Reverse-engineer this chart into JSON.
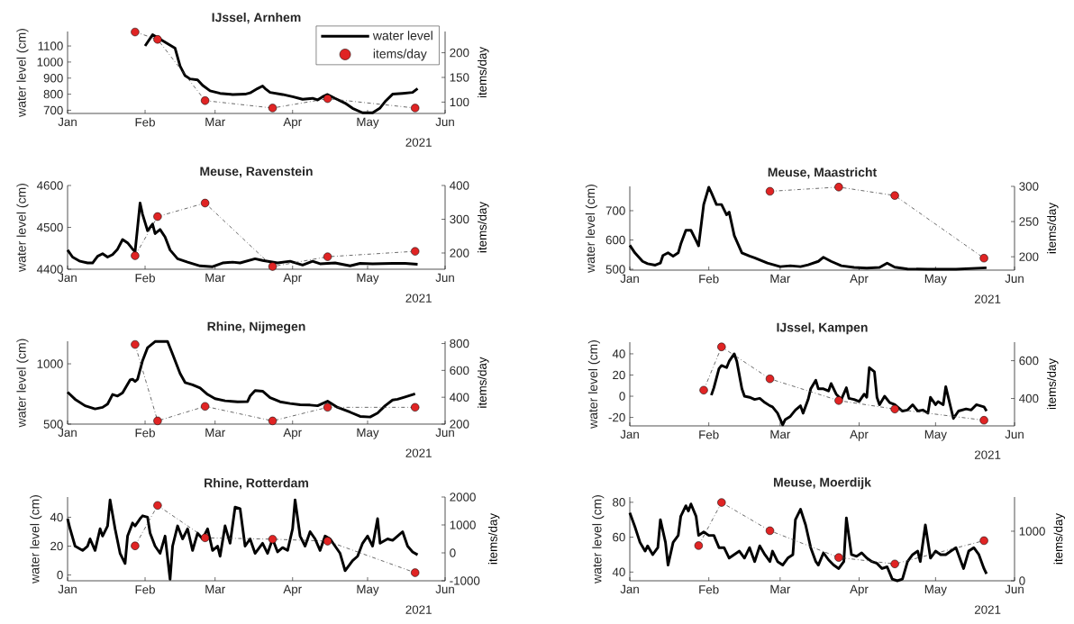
{
  "chart_data": [
    {
      "type": "line",
      "title": "IJssel, Arnhem",
      "ylabel": "water level (cm)",
      "y2label": "items/day",
      "legend": "top right",
      "annotations": [
        "2021"
      ],
      "xlim": [
        "2021-01-01",
        "2021-06-01"
      ],
      "xticks": [
        {
          "value": "2021-01-01",
          "label": "Jan"
        },
        {
          "value": "2021-02-01",
          "label": "Feb"
        },
        {
          "value": "2021-03-01",
          "label": "Mar"
        },
        {
          "value": "2021-04-01",
          "label": "Apr"
        },
        {
          "value": "2021-05-01",
          "label": "May"
        },
        {
          "value": "2021-06-01",
          "label": "Jun"
        }
      ],
      "ylim": [
        680,
        1190
      ],
      "yticks": [
        700,
        800,
        900,
        1000,
        1100
      ],
      "y2lim": [
        77,
        243
      ],
      "y2ticks": [
        100,
        150,
        200
      ],
      "series": [
        {
          "name": "water level",
          "color": "#000000",
          "marker": "none",
          "line_style": "solid",
          "x": [
            "2021-02-01",
            "2021-02-04",
            "2021-02-05",
            "2021-02-10",
            "2021-02-13",
            "2021-02-15",
            "2021-02-17",
            "2021-02-19",
            "2021-02-22",
            "2021-02-24",
            "2021-02-27",
            "2021-03-03",
            "2021-03-08",
            "2021-03-13",
            "2021-03-15",
            "2021-03-18",
            "2021-03-20",
            "2021-03-21",
            "2021-03-23",
            "2021-03-28",
            "2021-04-01",
            "2021-04-05",
            "2021-04-09",
            "2021-04-11",
            "2021-04-13",
            "2021-04-15",
            "2021-04-18",
            "2021-04-22",
            "2021-04-25",
            "2021-04-29",
            "2021-05-03",
            "2021-05-06",
            "2021-05-08",
            "2021-05-11",
            "2021-05-15",
            "2021-05-19",
            "2021-05-21"
          ],
          "values": [
            1100,
            1170,
            null,
            null,
            1086,
            975,
            915,
            895,
            889,
            855,
            821,
            805,
            798,
            800,
            808,
            835,
            851,
            835,
            811,
            798,
            784,
            768,
            774,
            764,
            784,
            798,
            774,
            744,
            712,
            684,
            684,
            714,
            754,
            800,
            805,
            811,
            835
          ]
        },
        {
          "name": "items/day",
          "color": "#e02424",
          "axis": "y2",
          "marker": "circle",
          "line_style": "dashdot",
          "x": [
            "2021-01-28",
            "2021-02-06",
            "2021-02-25",
            "2021-03-24",
            "2021-04-15",
            "2021-05-20"
          ],
          "values": [
            242,
            227,
            103,
            88,
            107,
            88
          ]
        }
      ]
    },
    {
      "type": "line",
      "title": "Meuse, Ravenstein",
      "ylabel": "water level (cm)",
      "y2label": "items/day",
      "annotations": [
        "2021"
      ],
      "xlim": [
        "2021-01-01",
        "2021-06-01"
      ],
      "xticks": [
        {
          "value": "2021-01-01",
          "label": "Jan"
        },
        {
          "value": "2021-02-01",
          "label": "Feb"
        },
        {
          "value": "2021-03-01",
          "label": "Mar"
        },
        {
          "value": "2021-04-01",
          "label": "Apr"
        },
        {
          "value": "2021-05-01",
          "label": "May"
        },
        {
          "value": "2021-06-01",
          "label": "Jun"
        }
      ],
      "ylim": [
        4400,
        4600
      ],
      "yticks": [
        4400,
        4500,
        4600
      ],
      "y2lim": [
        152,
        400
      ],
      "y2ticks": [
        200,
        300,
        400
      ],
      "series": [
        {
          "color": "#000000",
          "marker": "none",
          "line_style": "solid",
          "x": [
            "2021-01-01",
            "2021-01-03",
            "2021-01-06",
            "2021-01-09",
            "2021-01-11",
            "2021-01-13",
            "2021-01-15",
            "2021-01-17",
            "2021-01-19",
            "2021-01-21",
            "2021-01-23",
            "2021-01-25",
            "2021-01-27",
            "2021-01-28",
            "2021-01-30",
            "2021-01-31",
            "2021-02-02",
            "2021-02-04",
            "2021-02-05",
            "2021-02-07",
            "2021-02-09",
            "2021-02-11",
            "2021-02-14",
            "2021-02-18",
            "2021-02-23",
            "2021-02-28",
            "2021-03-04",
            "2021-03-08",
            "2021-03-11",
            "2021-03-17",
            "2021-03-20",
            "2021-03-26",
            "2021-03-31",
            "2021-04-05",
            "2021-04-09",
            "2021-04-12",
            "2021-04-18",
            "2021-04-24",
            "2021-04-28",
            "2021-05-03",
            "2021-05-11",
            "2021-05-16",
            "2021-05-21"
          ],
          "values": [
            4446,
            4429,
            4419,
            4415,
            4415,
            4431,
            4437,
            4429,
            4435,
            4448,
            4471,
            4463,
            4448,
            4442,
            4558,
            4531,
            4492,
            4508,
            4485,
            4495,
            4477,
            4446,
            4425,
            4417,
            4408,
            4406,
            4415,
            4417,
            4415,
            4425,
            4421,
            4415,
            4419,
            4410,
            4419,
            4413,
            4415,
            4408,
            4414,
            4413,
            4414,
            4414,
            4412
          ]
        },
        {
          "color": "#e02424",
          "axis": "y2",
          "marker": "circle",
          "line_style": "dashdot",
          "x": [
            "2021-01-28",
            "2021-02-06",
            "2021-02-25",
            "2021-03-24",
            "2021-04-15",
            "2021-05-20"
          ],
          "values": [
            192,
            308,
            348,
            160,
            189,
            205
          ]
        }
      ]
    },
    {
      "type": "line",
      "title": "Meuse, Maastricht",
      "ylabel": "water level (cm)",
      "y2label": "items/day",
      "annotations": [
        "2021"
      ],
      "xlim": [
        "2021-01-01",
        "2021-06-01"
      ],
      "xticks": [
        {
          "value": "2021-01-01",
          "label": "Jan"
        },
        {
          "value": "2021-02-01",
          "label": "Feb"
        },
        {
          "value": "2021-03-01",
          "label": "Mar"
        },
        {
          "value": "2021-04-01",
          "label": "Apr"
        },
        {
          "value": "2021-05-01",
          "label": "May"
        },
        {
          "value": "2021-06-01",
          "label": "Jun"
        }
      ],
      "ylim": [
        497,
        783
      ],
      "yticks": [
        500,
        600,
        700
      ],
      "y2lim": [
        181,
        300
      ],
      "y2ticks": [
        200,
        250,
        300
      ],
      "series": [
        {
          "color": "#000000",
          "marker": "none",
          "line_style": "solid",
          "x": [
            "2021-01-01",
            "2021-01-03",
            "2021-01-06",
            "2021-01-08",
            "2021-01-11",
            "2021-01-13",
            "2021-01-14",
            "2021-01-16",
            "2021-01-18",
            "2021-01-20",
            "2021-01-21",
            "2021-01-23",
            "2021-01-25",
            "2021-01-27",
            "2021-01-28",
            "2021-01-30",
            "2021-02-01",
            "2021-02-02",
            "2021-02-04",
            "2021-02-06",
            "2021-02-08",
            "2021-02-09",
            "2021-02-11",
            "2021-02-14",
            "2021-02-17",
            "2021-02-19",
            "2021-02-24",
            "2021-03-01",
            "2021-03-05",
            "2021-03-09",
            "2021-03-12",
            "2021-03-16",
            "2021-03-18",
            "2021-03-21",
            "2021-03-25",
            "2021-03-30",
            "2021-04-04",
            "2021-04-09",
            "2021-04-12",
            "2021-04-15",
            "2021-04-20",
            "2021-04-28",
            "2021-05-09",
            "2021-05-21"
          ],
          "values": [
            582,
            556,
            527,
            519,
            514,
            521,
            547,
            556,
            545,
            556,
            586,
            633,
            633,
            598,
            580,
            721,
            780,
            762,
            721,
            721,
            686,
            695,
            615,
            556,
            545,
            539,
            521,
            509,
            512,
            509,
            515,
            527,
            541,
            527,
            512,
            506,
            504,
            506,
            521,
            507,
            501,
            500,
            500,
            505
          ]
        },
        {
          "color": "#e02424",
          "axis": "y2",
          "marker": "circle",
          "line_style": "dashdot",
          "x": [
            "2021-02-25",
            "2021-03-24",
            "2021-04-15",
            "2021-05-20"
          ],
          "values": [
            293,
            299,
            287,
            198
          ]
        }
      ]
    },
    {
      "type": "line",
      "title": "Rhine, Nijmegen",
      "ylabel": "water level (cm)",
      "y2label": "items/day",
      "annotations": [
        "2021"
      ],
      "xlim": [
        "2021-01-01",
        "2021-06-01"
      ],
      "xticks": [
        {
          "value": "2021-01-01",
          "label": "Jan"
        },
        {
          "value": "2021-02-01",
          "label": "Feb"
        },
        {
          "value": "2021-03-01",
          "label": "Mar"
        },
        {
          "value": "2021-04-01",
          "label": "Apr"
        },
        {
          "value": "2021-05-01",
          "label": "May"
        },
        {
          "value": "2021-06-01",
          "label": "Jun"
        }
      ],
      "ylim": [
        500,
        1187
      ],
      "yticks": [
        500,
        1000
      ],
      "y2lim": [
        200,
        817
      ],
      "y2ticks": [
        200,
        400,
        600,
        800
      ],
      "series": [
        {
          "color": "#000000",
          "marker": "none",
          "line_style": "solid",
          "x": [
            "2021-01-01",
            "2021-01-04",
            "2021-01-08",
            "2021-01-12",
            "2021-01-15",
            "2021-01-17",
            "2021-01-19",
            "2021-01-21",
            "2021-01-23",
            "2021-01-26",
            "2021-01-27",
            "2021-01-28",
            "2021-01-29",
            "2021-01-31",
            "2021-02-02",
            "2021-02-05",
            "2021-02-10",
            "2021-02-12",
            "2021-02-15",
            "2021-02-17",
            "2021-02-20",
            "2021-02-23",
            "2021-02-26",
            "2021-03-01",
            "2021-03-05",
            "2021-03-10",
            "2021-03-14",
            "2021-03-15",
            "2021-03-17",
            "2021-03-20",
            "2021-03-23",
            "2021-03-27",
            "2021-03-31",
            "2021-04-04",
            "2021-04-08",
            "2021-04-11",
            "2021-04-15",
            "2021-04-19",
            "2021-04-24",
            "2021-04-28",
            "2021-05-02",
            "2021-05-05",
            "2021-05-08",
            "2021-05-11",
            "2021-05-13",
            "2021-05-16",
            "2021-05-20"
          ],
          "values": [
            765,
            706,
            652,
            626,
            639,
            666,
            746,
            733,
            759,
            866,
            872,
            853,
            872,
            1027,
            1134,
            1185,
            1185,
            1080,
            920,
            845,
            826,
            799,
            746,
            711,
            693,
            685,
            687,
            733,
            778,
            773,
            719,
            685,
            671,
            660,
            658,
            652,
            690,
            639,
            599,
            564,
            559,
            591,
            652,
            700,
            706,
            725,
            751
          ]
        },
        {
          "color": "#e02424",
          "axis": "y2",
          "marker": "circle",
          "line_style": "dashdot",
          "x": [
            "2021-01-28",
            "2021-02-06",
            "2021-02-25",
            "2021-03-24",
            "2021-04-15",
            "2021-05-20"
          ],
          "values": [
            793,
            224,
            332,
            224,
            325,
            325
          ]
        }
      ]
    },
    {
      "type": "line",
      "title": "IJssel, Kampen",
      "ylabel": "water level (cm)",
      "y2label": "items/day",
      "annotations": [
        "2021"
      ],
      "xlim": [
        "2021-01-01",
        "2021-06-01"
      ],
      "xticks": [
        {
          "value": "2021-01-01",
          "label": "Jan"
        },
        {
          "value": "2021-02-01",
          "label": "Feb"
        },
        {
          "value": "2021-03-01",
          "label": "Mar"
        },
        {
          "value": "2021-04-01",
          "label": "Apr"
        },
        {
          "value": "2021-05-01",
          "label": "May"
        },
        {
          "value": "2021-06-01",
          "label": "Jun"
        }
      ],
      "ylim": [
        -28,
        51
      ],
      "yticks": [
        -20,
        0,
        20,
        40
      ],
      "y2lim": [
        255,
        698
      ],
      "y2ticks": [
        400,
        600
      ],
      "series": [
        {
          "color": "#000000",
          "marker": "none",
          "line_style": "solid",
          "x": [
            "2021-02-02",
            "2021-02-03",
            "2021-02-05",
            "2021-02-06",
            "2021-02-08",
            "2021-02-09",
            "2021-02-11",
            "2021-02-12",
            "2021-02-14",
            "2021-02-15",
            "2021-02-17",
            "2021-02-19",
            "2021-02-21",
            "2021-02-23",
            "2021-02-25",
            "2021-02-26",
            "2021-02-28",
            "2021-03-02",
            "2021-03-03",
            "2021-03-05",
            "2021-03-07",
            "2021-03-09",
            "2021-03-10",
            "2021-03-12",
            "2021-03-13",
            "2021-03-15",
            "2021-03-16",
            "2021-03-18",
            "2021-03-20",
            "2021-03-21",
            "2021-03-23",
            "2021-03-25",
            "2021-03-27",
            "2021-03-28",
            "2021-03-30",
            "2021-04-01",
            "2021-04-03",
            "2021-04-04",
            "2021-04-05",
            "2021-04-07",
            "2021-04-08",
            "2021-04-09",
            "2021-04-11",
            "2021-04-13",
            "2021-04-15",
            "2021-04-18",
            "2021-04-20",
            "2021-04-22",
            "2021-04-24",
            "2021-04-26",
            "2021-04-28",
            "2021-04-29",
            "2021-05-01",
            "2021-05-02",
            "2021-05-04",
            "2021-05-05",
            "2021-05-07",
            "2021-05-08",
            "2021-05-10",
            "2021-05-13",
            "2021-05-15",
            "2021-05-17",
            "2021-05-20",
            "2021-05-21"
          ],
          "values": [
            1,
            8,
            26,
            29,
            27,
            33,
            40,
            33,
            7,
            0,
            -1,
            -3,
            -2,
            -6,
            -9,
            -10,
            -16,
            -27,
            -22,
            -19,
            -13,
            -9,
            -16,
            -3,
            7,
            15,
            7,
            7,
            5,
            12,
            2,
            -3,
            8,
            -2,
            -3,
            -5,
            2,
            -1,
            27,
            23,
            -1,
            -8,
            0,
            -6,
            -8,
            -14,
            -13,
            -8,
            -14,
            -13,
            -16,
            -1,
            -8,
            -5,
            -8,
            9,
            -11,
            -21,
            -14,
            -12,
            -13,
            -8,
            -10,
            -14
          ]
        },
        {
          "color": "#e02424",
          "axis": "y2",
          "marker": "circle",
          "line_style": "dashdot",
          "x": [
            "2021-01-30",
            "2021-02-06",
            "2021-02-25",
            "2021-03-24",
            "2021-04-15",
            "2021-05-20"
          ],
          "values": [
            444,
            673,
            504,
            389,
            344,
            285
          ]
        }
      ]
    },
    {
      "type": "line",
      "title": "Rhine, Rotterdam",
      "ylabel": "water level (cm)",
      "y2label": "items/day",
      "annotations": [
        "2021"
      ],
      "xlim": [
        "2021-01-01",
        "2021-06-01"
      ],
      "xticks": [
        {
          "value": "2021-01-01",
          "label": "Jan"
        },
        {
          "value": "2021-02-01",
          "label": "Feb"
        },
        {
          "value": "2021-03-01",
          "label": "Mar"
        },
        {
          "value": "2021-04-01",
          "label": "Apr"
        },
        {
          "value": "2021-05-01",
          "label": "May"
        },
        {
          "value": "2021-06-01",
          "label": "Jun"
        }
      ],
      "ylim": [
        -4,
        54
      ],
      "yticks": [
        0,
        20,
        40
      ],
      "y2lim": [
        -1000,
        2000
      ],
      "y2ticks": [
        -1000,
        0,
        1000,
        2000
      ],
      "series": [
        {
          "color": "#000000",
          "marker": "none",
          "line_style": "solid",
          "x": [
            "2021-01-01",
            "2021-01-02",
            "2021-01-04",
            "2021-01-07",
            "2021-01-09",
            "2021-01-10",
            "2021-01-12",
            "2021-01-14",
            "2021-01-15",
            "2021-01-17",
            "2021-01-18",
            "2021-01-20",
            "2021-01-22",
            "2021-01-24",
            "2021-01-25",
            "2021-01-27",
            "2021-01-28",
            "2021-01-30",
            "2021-01-31",
            "2021-02-02",
            "2021-02-03",
            "2021-02-05",
            "2021-02-07",
            "2021-02-09",
            "2021-02-11",
            "2021-02-12",
            "2021-02-14",
            "2021-02-16",
            "2021-02-18",
            "2021-02-20",
            "2021-02-22",
            "2021-02-24",
            "2021-02-26",
            "2021-02-28",
            "2021-03-02",
            "2021-03-03",
            "2021-03-05",
            "2021-03-07",
            "2021-03-09",
            "2021-03-11",
            "2021-03-13",
            "2021-03-15",
            "2021-03-17",
            "2021-03-20",
            "2021-03-22",
            "2021-03-24",
            "2021-03-26",
            "2021-03-28",
            "2021-03-30",
            "2021-04-01",
            "2021-04-02",
            "2021-04-04",
            "2021-04-06",
            "2021-04-08",
            "2021-04-10",
            "2021-04-12",
            "2021-04-14",
            "2021-04-16",
            "2021-04-18",
            "2021-04-20",
            "2021-04-22",
            "2021-04-25",
            "2021-04-27",
            "2021-04-29",
            "2021-05-01",
            "2021-05-03",
            "2021-05-05",
            "2021-05-06",
            "2021-05-09",
            "2021-05-11",
            "2021-05-13",
            "2021-05-15",
            "2021-05-17",
            "2021-05-19",
            "2021-05-21"
          ],
          "values": [
            39,
            32,
            20,
            17,
            20,
            25,
            17,
            32,
            27,
            34,
            52,
            32,
            15,
            8,
            27,
            36,
            34,
            39,
            41,
            40,
            29,
            20,
            15,
            27,
            -3,
            20,
            34,
            25,
            32,
            17,
            29,
            25,
            32,
            17,
            20,
            13,
            34,
            22,
            47,
            46,
            20,
            25,
            15,
            22,
            15,
            25,
            16,
            19,
            17,
            32,
            52,
            27,
            20,
            30,
            25,
            17,
            27,
            25,
            20,
            15,
            3,
            10,
            13,
            22,
            27,
            20,
            39,
            22,
            25,
            24,
            27,
            30,
            20,
            16,
            14
          ]
        },
        {
          "color": "#e02424",
          "axis": "y2",
          "marker": "circle",
          "line_style": "dashdot",
          "x": [
            "2021-01-28",
            "2021-02-06",
            "2021-02-25",
            "2021-03-24",
            "2021-04-15",
            "2021-05-20"
          ],
          "values": [
            250,
            1700,
            540,
            490,
            420,
            -710
          ]
        }
      ]
    },
    {
      "type": "line",
      "title": "Meuse, Moerdijk",
      "ylabel": "water level (cm)",
      "y2label": "items/day",
      "annotations": [
        "2021"
      ],
      "xlim": [
        "2021-01-01",
        "2021-06-01"
      ],
      "xticks": [
        {
          "value": "2021-01-01",
          "label": "Jan"
        },
        {
          "value": "2021-02-01",
          "label": "Feb"
        },
        {
          "value": "2021-03-01",
          "label": "Mar"
        },
        {
          "value": "2021-04-01",
          "label": "Apr"
        },
        {
          "value": "2021-05-01",
          "label": "May"
        },
        {
          "value": "2021-06-01",
          "label": "Jun"
        }
      ],
      "ylim": [
        35,
        83
      ],
      "yticks": [
        40,
        60,
        80
      ],
      "y2lim": [
        0,
        1690
      ],
      "y2ticks": [
        0,
        1000
      ],
      "series": [
        {
          "color": "#000000",
          "marker": "none",
          "line_style": "solid",
          "x": [
            "2021-01-01",
            "2021-01-03",
            "2021-01-05",
            "2021-01-07",
            "2021-01-08",
            "2021-01-10",
            "2021-01-12",
            "2021-01-13",
            "2021-01-15",
            "2021-01-16",
            "2021-01-18",
            "2021-01-20",
            "2021-01-21",
            "2021-01-23",
            "2021-01-24",
            "2021-01-25",
            "2021-01-27",
            "2021-01-28",
            "2021-01-30",
            "2021-02-01",
            "2021-02-03",
            "2021-02-05",
            "2021-02-07",
            "2021-02-09",
            "2021-02-11",
            "2021-02-13",
            "2021-02-15",
            "2021-02-17",
            "2021-02-19",
            "2021-02-21",
            "2021-02-23",
            "2021-02-25",
            "2021-02-26",
            "2021-02-28",
            "2021-03-02",
            "2021-03-04",
            "2021-03-06",
            "2021-03-07",
            "2021-03-09",
            "2021-03-11",
            "2021-03-13",
            "2021-03-15",
            "2021-03-16",
            "2021-03-18",
            "2021-03-20",
            "2021-03-22",
            "2021-03-24",
            "2021-03-26",
            "2021-03-27",
            "2021-03-29",
            "2021-03-31",
            "2021-04-02",
            "2021-04-04",
            "2021-04-06",
            "2021-04-08",
            "2021-04-10",
            "2021-04-12",
            "2021-04-14",
            "2021-04-16",
            "2021-04-18",
            "2021-04-20",
            "2021-04-22",
            "2021-04-24",
            "2021-04-25",
            "2021-04-27",
            "2021-04-29",
            "2021-05-01",
            "2021-05-03",
            "2021-05-05",
            "2021-05-07",
            "2021-05-09",
            "2021-05-11",
            "2021-05-12",
            "2021-05-14",
            "2021-05-16",
            "2021-05-18",
            "2021-05-20",
            "2021-05-21"
          ],
          "values": [
            74,
            66,
            57,
            52,
            55,
            50,
            54,
            70,
            57,
            44,
            57,
            61,
            72,
            78,
            75,
            79,
            72,
            61,
            63,
            61,
            61,
            54,
            54,
            48,
            50,
            52,
            48,
            54,
            46,
            55,
            50,
            46,
            52,
            46,
            44,
            48,
            50,
            70,
            76,
            67,
            54,
            46,
            44,
            51,
            47,
            44,
            42,
            46,
            71,
            50,
            49,
            51,
            48,
            46,
            45,
            42,
            43,
            36,
            35,
            36,
            46,
            50,
            52,
            46,
            67,
            48,
            52,
            50,
            50,
            52,
            54,
            46,
            42,
            52,
            54,
            50,
            42,
            39
          ]
        },
        {
          "color": "#e02424",
          "axis": "y2",
          "marker": "circle",
          "line_style": "dashdot",
          "x": [
            "2021-01-28",
            "2021-02-06",
            "2021-02-25",
            "2021-03-24",
            "2021-04-15",
            "2021-05-20"
          ],
          "values": [
            710,
            1580,
            1010,
            470,
            340,
            810
          ]
        }
      ]
    }
  ]
}
